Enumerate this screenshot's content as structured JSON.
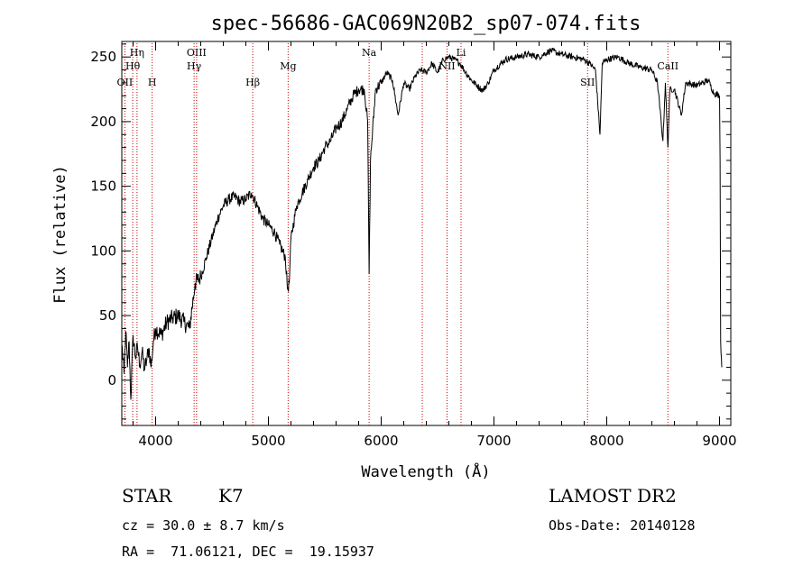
{
  "chart_data": {
    "type": "line",
    "title": "spec-56686-GAC069N20B2_sp07-074.fits",
    "xlabel": "Wavelength (Å)",
    "ylabel": "Flux (relative)",
    "xlim": [
      3700,
      9100
    ],
    "ylim": [
      -35,
      262
    ],
    "xticks": [
      4000,
      5000,
      6000,
      7000,
      8000,
      9000
    ],
    "yticks": [
      0,
      50,
      100,
      150,
      200,
      250
    ],
    "x_minor_step": 200,
    "y_minor_step": 10,
    "grid": false,
    "line_color": "#000000",
    "marker_color": "#cc0000",
    "spectral_lines": [
      {
        "label": "OII",
        "wavelength": 3727,
        "row": 3
      },
      {
        "label": "Hη",
        "wavelength": 3835,
        "row": 1
      },
      {
        "label": "Hθ",
        "wavelength": 3797,
        "row": 2
      },
      {
        "label": "H",
        "wavelength": 3969,
        "row": 3
      },
      {
        "label": "OIII",
        "wavelength": 4363,
        "row": 1
      },
      {
        "label": "Hγ",
        "wavelength": 4341,
        "row": 2
      },
      {
        "label": "Hβ",
        "wavelength": 4861,
        "row": 3
      },
      {
        "label": "Mg",
        "wavelength": 5175,
        "row": 2
      },
      {
        "label": "Na",
        "wavelength": 5893,
        "row": 1
      },
      {
        "label": "",
        "wavelength": 6364,
        "row": 0
      },
      {
        "label": "NII",
        "wavelength": 6584,
        "row": 2
      },
      {
        "label": "Li",
        "wavelength": 6708,
        "row": 1
      },
      {
        "label": "SII",
        "wavelength": 7830,
        "row": 3
      },
      {
        "label": "CaII",
        "wavelength": 8542,
        "row": 2
      }
    ],
    "series": [
      {
        "points": [
          [
            3700,
            28
          ],
          [
            3720,
            5
          ],
          [
            3735,
            38
          ],
          [
            3750,
            10
          ],
          [
            3765,
            30
          ],
          [
            3780,
            -15
          ],
          [
            3800,
            35
          ],
          [
            3820,
            18
          ],
          [
            3840,
            25
          ],
          [
            3860,
            12
          ],
          [
            3880,
            22
          ],
          [
            3900,
            8
          ],
          [
            3920,
            15
          ],
          [
            3940,
            25
          ],
          [
            3960,
            10
          ],
          [
            3980,
            30
          ],
          [
            4000,
            40
          ],
          [
            4050,
            35
          ],
          [
            4100,
            45
          ],
          [
            4150,
            48
          ],
          [
            4200,
            50
          ],
          [
            4250,
            45
          ],
          [
            4300,
            40
          ],
          [
            4350,
            75
          ],
          [
            4400,
            80
          ],
          [
            4450,
            95
          ],
          [
            4500,
            110
          ],
          [
            4550,
            125
          ],
          [
            4600,
            135
          ],
          [
            4650,
            140
          ],
          [
            4700,
            142
          ],
          [
            4750,
            138
          ],
          [
            4800,
            140
          ],
          [
            4850,
            145
          ],
          [
            4900,
            135
          ],
          [
            4950,
            125
          ],
          [
            5000,
            120
          ],
          [
            5050,
            115
          ],
          [
            5100,
            105
          ],
          [
            5150,
            95
          ],
          [
            5170,
            70
          ],
          [
            5185,
            75
          ],
          [
            5200,
            110
          ],
          [
            5250,
            135
          ],
          [
            5300,
            145
          ],
          [
            5350,
            155
          ],
          [
            5400,
            165
          ],
          [
            5450,
            170
          ],
          [
            5500,
            180
          ],
          [
            5550,
            185
          ],
          [
            5600,
            195
          ],
          [
            5650,
            200
          ],
          [
            5700,
            210
          ],
          [
            5750,
            220
          ],
          [
            5800,
            225
          ],
          [
            5850,
            225
          ],
          [
            5880,
            200
          ],
          [
            5893,
            82
          ],
          [
            5905,
            170
          ],
          [
            5950,
            225
          ],
          [
            6000,
            230
          ],
          [
            6050,
            238
          ],
          [
            6100,
            232
          ],
          [
            6150,
            205
          ],
          [
            6200,
            230
          ],
          [
            6250,
            225
          ],
          [
            6300,
            235
          ],
          [
            6350,
            240
          ],
          [
            6400,
            238
          ],
          [
            6450,
            245
          ],
          [
            6500,
            238
          ],
          [
            6550,
            248
          ],
          [
            6600,
            250
          ],
          [
            6650,
            248
          ],
          [
            6700,
            245
          ],
          [
            6750,
            238
          ],
          [
            6800,
            232
          ],
          [
            6850,
            228
          ],
          [
            6900,
            224
          ],
          [
            6950,
            230
          ],
          [
            7000,
            240
          ],
          [
            7100,
            248
          ],
          [
            7200,
            250
          ],
          [
            7300,
            252
          ],
          [
            7400,
            250
          ],
          [
            7500,
            255
          ],
          [
            7600,
            252
          ],
          [
            7700,
            250
          ],
          [
            7800,
            248
          ],
          [
            7850,
            245
          ],
          [
            7900,
            240
          ],
          [
            7940,
            190
          ],
          [
            7960,
            245
          ],
          [
            8000,
            248
          ],
          [
            8100,
            250
          ],
          [
            8200,
            245
          ],
          [
            8300,
            242
          ],
          [
            8400,
            240
          ],
          [
            8450,
            230
          ],
          [
            8498,
            185
          ],
          [
            8520,
            230
          ],
          [
            8542,
            180
          ],
          [
            8560,
            225
          ],
          [
            8600,
            225
          ],
          [
            8662,
            205
          ],
          [
            8700,
            230
          ],
          [
            8800,
            228
          ],
          [
            8900,
            232
          ],
          [
            8950,
            222
          ],
          [
            9000,
            220
          ],
          [
            9005,
            170
          ],
          [
            9010,
            30
          ],
          [
            9020,
            10
          ]
        ]
      }
    ]
  },
  "info": {
    "object_class": "STAR",
    "subclass": "K7",
    "survey": "LAMOST DR2",
    "cz": "cz = 30.0 ± 8.7 km/s",
    "obs_date": "Obs-Date: 20140128",
    "coords": "RA =  71.06121, DEC =  19.15937"
  }
}
